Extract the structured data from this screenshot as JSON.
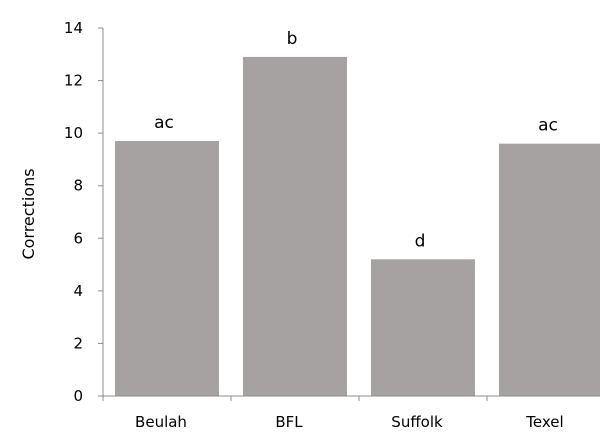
{
  "chart_data": {
    "type": "bar",
    "title": "",
    "xlabel": "",
    "ylabel": "Corrections",
    "ylim": [
      0,
      14
    ],
    "yticks": [
      0,
      2,
      4,
      6,
      8,
      10,
      12,
      14
    ],
    "categories": [
      "Beulah",
      "BFL",
      "Suffolk",
      "Texel"
    ],
    "values": [
      9.7,
      12.9,
      5.2,
      9.6
    ],
    "annotations": [
      "ac",
      "b",
      "d",
      "ac"
    ],
    "bar_color": "#a6a2a1",
    "grid": false,
    "legend": "none"
  }
}
